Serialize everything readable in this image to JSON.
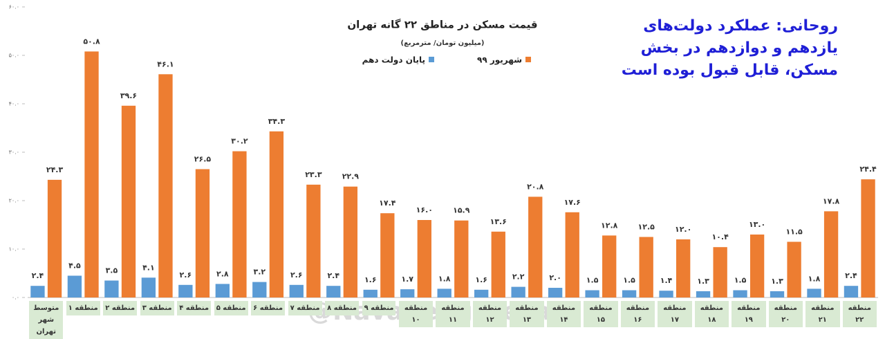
{
  "chart_data": {
    "type": "bar",
    "title": "قیمت مسکن در مناطق ۲۲ گانه تهران",
    "subtitle": "(میلیون تومان/ مترمربع)",
    "annotation": [
      "روحانی: عملکرد دولت‌های",
      "یازدهم و دوازدهم در بخش",
      "مسکن، قابل قبول بوده است"
    ],
    "watermark": "@NavadeEghtesadi",
    "categories": [
      "متوسط شهر تهران",
      "منطقه ۱",
      "منطقه ۲",
      "منطقه ۳",
      "منطقه ۴",
      "منطقه ۵",
      "منطقه ۶",
      "منطقه ۷",
      "منطقه ۸",
      "منطقه ۹",
      "منطقه ۱۰",
      "منطقه ۱۱",
      "منطقه ۱۲",
      "منطقه ۱۳",
      "منطقه ۱۴",
      "منطقه ۱۵",
      "منطقه ۱۶",
      "منطقه ۱۷",
      "منطقه ۱۸",
      "منطقه ۱۹",
      "منطقه ۲۰",
      "منطقه ۲۱",
      "منطقه ۲۲"
    ],
    "series": [
      {
        "name": "پایان دولت دهم",
        "color": "#5b9bd5",
        "values": [
          2.4,
          4.5,
          3.5,
          4.1,
          2.6,
          2.8,
          3.2,
          2.6,
          2.4,
          1.6,
          1.7,
          1.8,
          1.6,
          2.2,
          2.0,
          1.5,
          1.5,
          1.4,
          1.3,
          1.5,
          1.3,
          1.8,
          2.4
        ],
        "value_labels": [
          "۲.۴",
          "۴.۵",
          "۳.۵",
          "۴.۱",
          "۲.۶",
          "۲.۸",
          "۳.۲",
          "۲.۶",
          "۲.۴",
          "۱.۶",
          "۱.۷",
          "۱.۸",
          "۱.۶",
          "۲.۲",
          "۲.۰",
          "۱.۵",
          "۱.۵",
          "۱.۴",
          "۱.۳",
          "۱.۵",
          "۱.۳",
          "۱.۸",
          "۲.۴"
        ]
      },
      {
        "name": "شهریور ۹۹",
        "color": "#ed7d31",
        "values": [
          24.3,
          50.8,
          39.6,
          46.1,
          26.5,
          30.2,
          34.3,
          23.3,
          22.9,
          17.4,
          16.0,
          15.9,
          13.6,
          20.8,
          17.6,
          12.8,
          12.5,
          12.0,
          10.4,
          13.0,
          11.5,
          17.8,
          24.4
        ],
        "value_labels": [
          "۲۴.۳",
          "۵۰.۸",
          "۳۹.۶",
          "۴۶.۱",
          "۲۶.۵",
          "۳۰.۲",
          "۳۴.۳",
          "۲۳.۳",
          "۲۲.۹",
          "۱۷.۴",
          "۱۶.۰",
          "۱۵.۹",
          "۱۳.۶",
          "۲۰.۸",
          "۱۷.۶",
          "۱۲.۸",
          "۱۲.۵",
          "۱۲.۰",
          "۱۰.۴",
          "۱۳.۰",
          "۱۱.۵",
          "۱۷.۸",
          "۲۴.۴"
        ]
      }
    ],
    "ylim": [
      0,
      60
    ],
    "yticks": [
      {
        "value": 0,
        "label": "۰.۰"
      },
      {
        "value": 10,
        "label": "۱۰.۰"
      },
      {
        "value": 20,
        "label": "۲۰.۰"
      },
      {
        "value": 30,
        "label": "۳۰.۰"
      },
      {
        "value": 40,
        "label": "۴۰.۰"
      },
      {
        "value": 50,
        "label": "۵۰.۰"
      },
      {
        "value": 60,
        "label": "۶۰.۰"
      }
    ],
    "grid": false
  }
}
